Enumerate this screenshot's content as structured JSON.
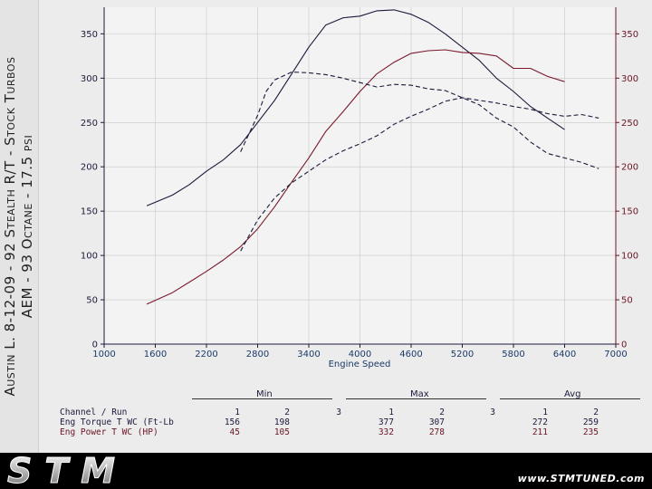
{
  "side_title": {
    "line1": "Austin L. 8-12-09 - 92 Stealth R/T - Stock Turbos",
    "line2": "AEM - 93 Octane - 17.5 psi"
  },
  "chart_data": {
    "type": "line",
    "xlabel": "Engine Speed",
    "xlim": [
      1000,
      7000
    ],
    "ylim": [
      0,
      380
    ],
    "x_ticks": [
      1000,
      1600,
      2200,
      2800,
      3400,
      4000,
      4600,
      5200,
      5800,
      6400,
      7000
    ],
    "y_ticks_left": [
      0,
      50,
      100,
      150,
      200,
      250,
      300,
      350
    ],
    "y_ticks_right": [
      0,
      50,
      100,
      150,
      200,
      250,
      300,
      350
    ],
    "grid": true,
    "series": [
      {
        "name": "Eng Torque T WC (Ft-Lb)",
        "run": 1,
        "style": "solid",
        "color": "#1a1a3a",
        "x": [
          1500,
          1800,
          2000,
          2200,
          2400,
          2600,
          2800,
          3000,
          3200,
          3400,
          3600,
          3800,
          4000,
          4200,
          4400,
          4600,
          4800,
          5000,
          5200,
          5400,
          5600,
          5800,
          6000,
          6200,
          6400
        ],
        "y": [
          156,
          168,
          180,
          195,
          208,
          225,
          250,
          275,
          305,
          335,
          360,
          368,
          370,
          376,
          377,
          372,
          363,
          350,
          335,
          320,
          300,
          285,
          268,
          255,
          242
        ]
      },
      {
        "name": "Eng Power T WC (HP)",
        "run": 1,
        "style": "solid",
        "color": "#7a1a2c",
        "x": [
          1500,
          1800,
          2000,
          2200,
          2400,
          2600,
          2800,
          3000,
          3200,
          3400,
          3600,
          3800,
          4000,
          4200,
          4400,
          4600,
          4800,
          5000,
          5200,
          5400,
          5600,
          5800,
          6000,
          6200,
          6400
        ],
        "y": [
          45,
          58,
          70,
          82,
          95,
          110,
          130,
          155,
          183,
          210,
          240,
          262,
          285,
          305,
          318,
          328,
          331,
          332,
          329,
          328,
          325,
          311,
          311,
          302,
          296
        ]
      },
      {
        "name": "Eng Torque T WC (Ft-Lb)",
        "run": 2,
        "style": "dashed",
        "color": "#1a1a3a",
        "x": [
          2600,
          2800,
          2900,
          3000,
          3200,
          3400,
          3600,
          3800,
          4000,
          4200,
          4400,
          4600,
          4800,
          5000,
          5200,
          5400,
          5600,
          5800,
          6000,
          6200,
          6400,
          6600,
          6800
        ],
        "y": [
          217,
          258,
          285,
          298,
          307,
          306,
          304,
          300,
          295,
          290,
          293,
          292,
          288,
          286,
          278,
          270,
          255,
          245,
          228,
          215,
          210,
          205,
          198
        ]
      },
      {
        "name": "Eng Power T WC (HP)",
        "run": 2,
        "style": "dashed",
        "color": "#1a1a3a",
        "x": [
          2600,
          2800,
          3000,
          3200,
          3400,
          3600,
          3800,
          4000,
          4200,
          4400,
          4600,
          4800,
          5000,
          5200,
          5400,
          5600,
          5800,
          6000,
          6200,
          6400,
          6600,
          6800
        ],
        "y": [
          105,
          140,
          165,
          182,
          195,
          208,
          218,
          226,
          235,
          248,
          257,
          265,
          274,
          278,
          275,
          272,
          268,
          265,
          260,
          257,
          259,
          255
        ]
      }
    ]
  },
  "summary": {
    "headers": {
      "min": "Min",
      "max": "Max",
      "avg": "Avg"
    },
    "channel_label": "Channel / Run",
    "runs": [
      "1",
      "2",
      "3"
    ],
    "rows": [
      {
        "channel": "Eng Torque T WC (Ft-Lb",
        "min": [
          "156",
          "198"
        ],
        "max": [
          "377",
          "307"
        ],
        "avg": [
          "272",
          "259"
        ]
      },
      {
        "channel": "Eng Power T WC (HP)",
        "min": [
          "45",
          "105"
        ],
        "max": [
          "332",
          "278"
        ],
        "avg": [
          "211",
          "235"
        ]
      }
    ]
  },
  "footer": {
    "logo_text": "STM",
    "website": "www.STMTUNED.com"
  }
}
